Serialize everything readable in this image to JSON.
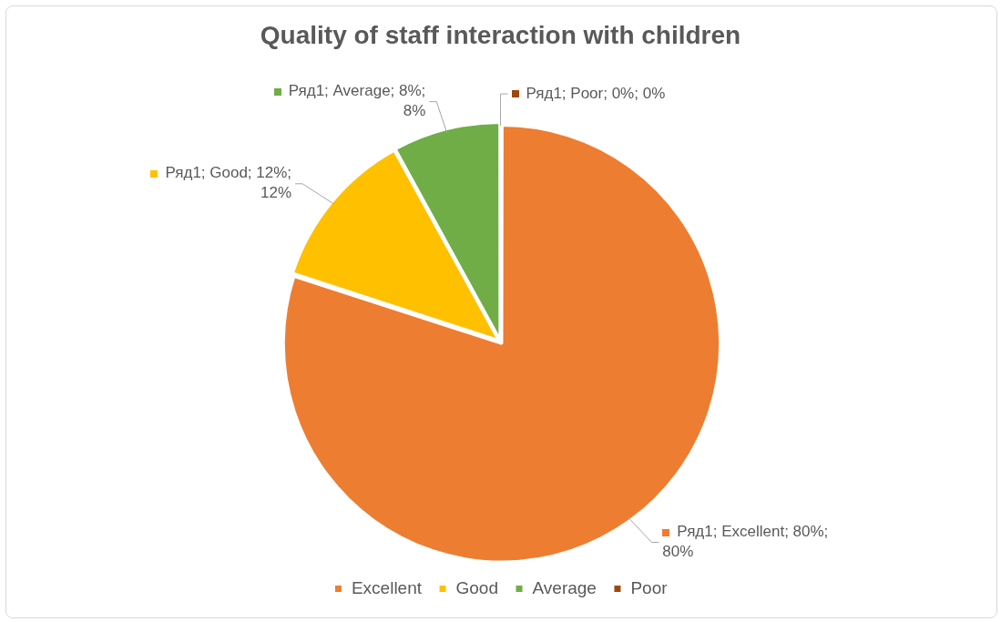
{
  "chart_data": {
    "type": "pie",
    "title": "Quality of staff interaction with children",
    "categories": [
      "Excellent",
      "Good",
      "Average",
      "Poor"
    ],
    "values": [
      80,
      12,
      8,
      0
    ],
    "colors": [
      "#ed7d31",
      "#ffc000",
      "#70ad47",
      "#9e480e"
    ],
    "value_labels": [
      "Ряд1; Excellent; 80%; 80%",
      "Ряд1; Good; 12%; 12%",
      "Ряд1; Average; 8%; 8%",
      "Ряд1; Poor; 0%; 0%"
    ],
    "legend": "bottom"
  }
}
